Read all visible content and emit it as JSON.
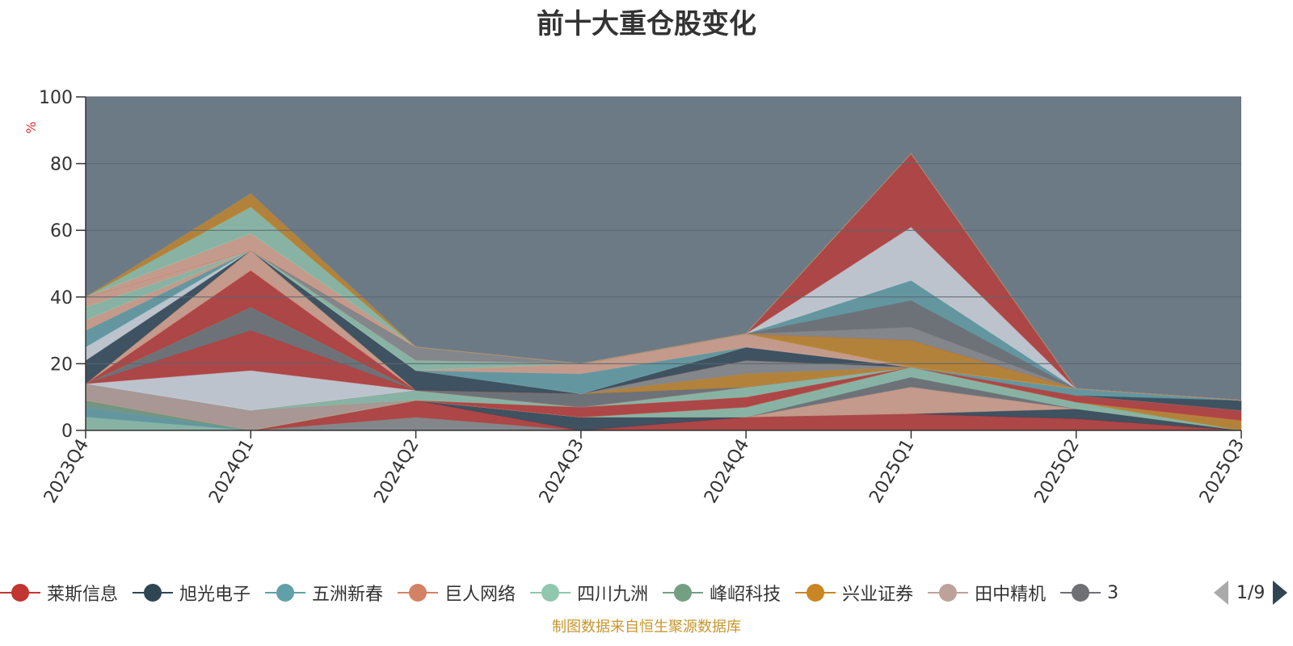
{
  "chart_data": {
    "type": "area",
    "stacked": true,
    "title": "前十大重仓股变化",
    "ylabel": "%",
    "ylim": [
      0,
      100
    ],
    "yticks": [
      0,
      20,
      40,
      60,
      80,
      100
    ],
    "grid": true,
    "legend_position": "bottom",
    "categories": [
      "2023Q4",
      "2024Q1",
      "2024Q2",
      "2024Q3",
      "2024Q4",
      "2025Q1",
      "2025Q2",
      "2025Q3"
    ],
    "series": [
      {
        "name": "",
        "color": "#8b8b8b",
        "values": [
          0,
          0,
          4,
          0,
          0,
          0,
          0,
          0
        ]
      },
      {
        "name": "",
        "color": "#c23531",
        "values": [
          0,
          0,
          5,
          0,
          4,
          5,
          3.5,
          0
        ]
      },
      {
        "name": "",
        "color": "#2f4554",
        "values": [
          0,
          0,
          0,
          4,
          0,
          0,
          3,
          0
        ]
      },
      {
        "name": "",
        "color": "#e0a58c",
        "values": [
          0,
          0,
          0,
          0,
          0,
          8,
          0,
          0
        ]
      },
      {
        "name": "",
        "color": "#6e7074",
        "values": [
          0,
          0,
          0,
          0,
          0,
          3,
          0,
          0
        ]
      },
      {
        "name": "",
        "color": "#91c7ae",
        "values": [
          4,
          0,
          0,
          0,
          3,
          3,
          2,
          0
        ]
      },
      {
        "name": "",
        "color": "#61a0a8",
        "values": [
          3,
          0,
          0,
          0,
          0,
          0,
          0,
          0
        ]
      },
      {
        "name": "",
        "color": "#749f83",
        "values": [
          2,
          0,
          0,
          0,
          0,
          0,
          0,
          0
        ]
      },
      {
        "name": "",
        "color": "#ca8622",
        "values": [
          0,
          0,
          0,
          0,
          0,
          0,
          0,
          3
        ]
      },
      {
        "name": "",
        "color": "#bda29a",
        "values": [
          5,
          6,
          0,
          0,
          0,
          0,
          0,
          0
        ]
      },
      {
        "name": "",
        "color": "#c23531",
        "values": [
          0,
          0,
          0,
          3,
          3,
          0,
          2,
          3
        ]
      },
      {
        "name": "",
        "color": "#91c7ae",
        "values": [
          0,
          0,
          3,
          0,
          3,
          0,
          0,
          0
        ]
      },
      {
        "name": "",
        "color": "#e0a58c",
        "values": [
          0,
          0,
          0,
          0,
          0,
          0,
          0,
          0
        ]
      },
      {
        "name": "",
        "color": "#2f4554",
        "values": [
          0,
          0,
          0,
          0,
          0,
          0,
          0,
          3
        ]
      },
      {
        "name": "",
        "color": "#61a0a8",
        "values": [
          0,
          0,
          0,
          0,
          0,
          0,
          2,
          0
        ]
      },
      {
        "name": "",
        "color": "#8b8b8b",
        "values": [
          0,
          0,
          0,
          0,
          0,
          0,
          0,
          0
        ]
      },
      {
        "name": "",
        "color": "#d7dce3",
        "values": [
          0,
          12,
          0,
          0,
          0,
          0,
          0,
          0
        ]
      },
      {
        "name": "",
        "color": "#c23531",
        "values": [
          0,
          12,
          0,
          0,
          0,
          0,
          0,
          0
        ]
      },
      {
        "name": "",
        "color": "#6e7074",
        "values": [
          0,
          7,
          0,
          4,
          0,
          0,
          0,
          0
        ]
      },
      {
        "name": "",
        "color": "#ca8622",
        "values": [
          0,
          0,
          0,
          0,
          4,
          0,
          0,
          0
        ]
      },
      {
        "name": "",
        "color": "#8b8b8b",
        "values": [
          0,
          0,
          0,
          0,
          4,
          0,
          0,
          0
        ]
      },
      {
        "name": "",
        "color": "#c23531",
        "values": [
          0,
          11,
          0,
          0,
          0,
          0,
          0,
          0
        ]
      },
      {
        "name": "",
        "color": "#e0a58c",
        "values": [
          0,
          6,
          0,
          0,
          0,
          0,
          0,
          0
        ]
      },
      {
        "name": "",
        "color": "#2f4554",
        "values": [
          7,
          0,
          6,
          0,
          4,
          0,
          0,
          0
        ]
      },
      {
        "name": "",
        "color": "#d7dce3",
        "values": [
          4,
          0,
          0,
          0,
          0,
          0,
          0,
          0
        ]
      },
      {
        "name": "",
        "color": "#61a0a8",
        "values": [
          5,
          0,
          0,
          6,
          0,
          0,
          0,
          0
        ]
      },
      {
        "name": "",
        "color": "#e0a58c",
        "values": [
          3,
          0,
          0,
          3,
          4,
          0,
          0,
          0
        ]
      },
      {
        "name": "",
        "color": "#91c7ae",
        "values": [
          4,
          0,
          3,
          0,
          0,
          0,
          0,
          0
        ]
      },
      {
        "name": "",
        "color": "#e0a58c",
        "values": [
          3,
          0,
          0,
          0,
          0,
          0,
          0,
          0
        ]
      },
      {
        "name": "",
        "color": "#8b8b8b",
        "values": [
          0,
          0,
          4,
          0,
          0,
          0,
          0,
          0
        ]
      },
      {
        "name": "",
        "color": "#ca8622",
        "values": [
          0,
          0,
          0,
          0,
          0,
          8,
          0,
          0
        ]
      },
      {
        "name": "",
        "color": "#c23531",
        "values": [
          0,
          0,
          0,
          0,
          0,
          0,
          0,
          0
        ]
      },
      {
        "name": "",
        "color": "#8b8b8b",
        "values": [
          0,
          0,
          0,
          0,
          0,
          4,
          0,
          0
        ]
      },
      {
        "name": "",
        "color": "#6e7074",
        "values": [
          0,
          0,
          0,
          0,
          0,
          8,
          0,
          0
        ]
      },
      {
        "name": "",
        "color": "#61a0a8",
        "values": [
          0,
          0,
          0,
          0,
          0,
          6,
          0,
          0
        ]
      },
      {
        "name": "",
        "color": "#d7dce3",
        "values": [
          0,
          0,
          0,
          0,
          0,
          16,
          0,
          0
        ]
      },
      {
        "name": "",
        "color": "#c23531",
        "values": [
          0,
          0,
          0,
          0,
          0,
          22,
          0,
          0
        ]
      },
      {
        "name": "",
        "color": "#e0a58c",
        "values": [
          0,
          5,
          0,
          0,
          0,
          0,
          0,
          0
        ]
      },
      {
        "name": "",
        "color": "#91c7ae",
        "values": [
          0,
          8,
          0,
          0,
          0,
          0,
          0,
          0
        ]
      },
      {
        "name": "",
        "color": "#ca8622",
        "values": [
          0,
          4,
          0,
          0,
          0,
          0,
          0,
          0
        ]
      },
      {
        "name": "",
        "color": "#8b8b8b",
        "values": [
          0,
          0,
          0,
          0,
          0,
          0,
          0,
          0
        ]
      }
    ]
  },
  "legend": {
    "items": [
      {
        "label": "莱斯信息",
        "color": "#c23531"
      },
      {
        "label": "旭光电子",
        "color": "#2f4554"
      },
      {
        "label": "五洲新春",
        "color": "#61a0a8"
      },
      {
        "label": "巨人网络",
        "color": "#d48265"
      },
      {
        "label": "四川九洲",
        "color": "#91c7ae"
      },
      {
        "label": "峰岹科技",
        "color": "#749f83"
      },
      {
        "label": "兴业证券",
        "color": "#ca8622"
      },
      {
        "label": "田中精机",
        "color": "#bda29a"
      },
      {
        "label": "3",
        "color": "#6e7074"
      }
    ],
    "pager": "1/9"
  },
  "colors": {
    "plot_background": "#6c7a86",
    "axis": "#333333",
    "grid": "#5a6671",
    "ylabel": "#e03030"
  },
  "source_note": "制图数据来自恒生聚源数据库"
}
